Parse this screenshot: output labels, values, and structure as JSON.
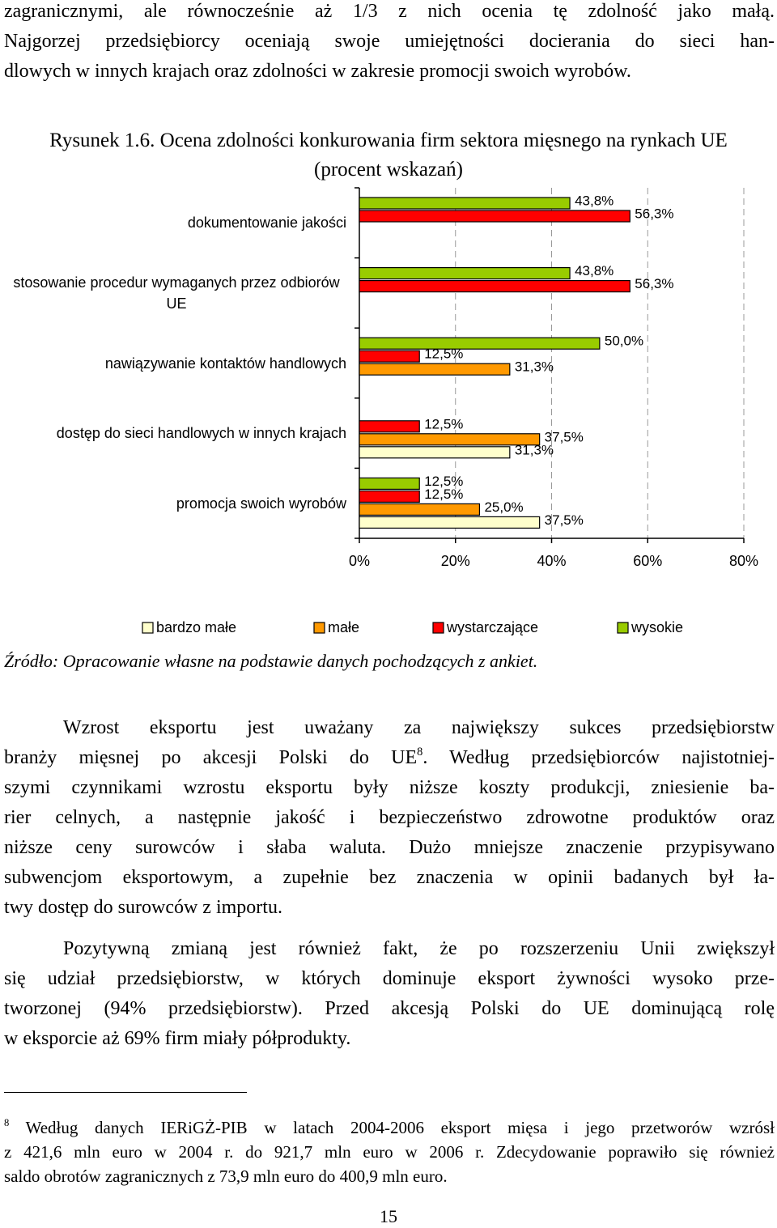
{
  "intro": {
    "lines": [
      "zagranicznymi, ale równocześnie aż 1/3 z nich ocenia tę zdolność jako małą.",
      "Najgorzej przedsiębiorcy oceniają swoje umiejętności docierania do sieci han-",
      "dlowych w innych krajach oraz zdolności w zakresie promocji swoich wyrobów."
    ]
  },
  "chart_data": {
    "type": "bar",
    "orientation": "horizontal",
    "title": "Rysunek 1.6. Ocena zdolności konkurowania firm sektora mięsnego na rynkach UE (procent wskazań)",
    "categories": [
      "dokumentowanie jakości",
      "stosowanie procedur wymaganych przez odbiorów UE",
      "nawiązywanie kontaktów handlowych",
      "dostęp do sieci handlowych w innych krajach",
      "promocja swoich wyrobów"
    ],
    "series": [
      {
        "name": "bardzo małe",
        "color": "#ffffcc",
        "values": [
          null,
          null,
          null,
          31.3,
          37.5
        ],
        "value_labels": [
          null,
          null,
          null,
          "31,3%",
          "37,5%"
        ]
      },
      {
        "name": "małe",
        "color": "#ff9900",
        "values": [
          null,
          null,
          31.3,
          37.5,
          25.0
        ],
        "value_labels": [
          null,
          null,
          "31,3%",
          "37,5%",
          "25,0%"
        ]
      },
      {
        "name": "wystarczające",
        "color": "#ff0000",
        "values": [
          56.3,
          56.3,
          12.5,
          12.5,
          12.5
        ],
        "value_labels": [
          "56,3%",
          "56,3%",
          "12,5%",
          "12,5%",
          "12,5%"
        ]
      },
      {
        "name": "wysokie",
        "color": "#99cc00",
        "values": [
          43.8,
          43.8,
          50.0,
          null,
          12.5
        ],
        "value_labels": [
          "43,8%",
          "43,8%",
          "50,0%",
          null,
          "12,5%"
        ]
      }
    ],
    "xlim": [
      0,
      80
    ],
    "xticks": [
      {
        "value": 0,
        "label": "0%"
      },
      {
        "value": 20,
        "label": "20%"
      },
      {
        "value": 40,
        "label": "40%"
      },
      {
        "value": 60,
        "label": "60%"
      },
      {
        "value": 80,
        "label": "80%"
      }
    ],
    "grid": true,
    "legend": "bottom"
  },
  "source": "Źródło: Opracowanie własne na podstawie danych pochodzących z ankiet.",
  "paragraphs": [
    {
      "lines": [
        "Wzrost eksportu jest uważany za największy sukces przedsiębiorstw",
        {
          "before": "branży mięsnej po akcesji Polski do UE",
          "ref": "8",
          "after": ". Według przedsiębiorców najistotniej-"
        },
        "szymi czynnikami wzrostu eksportu były niższe koszty produkcji, zniesienie ba-",
        "rier celnych, a następnie jakość i bezpieczeństwo zdrowotne produktów oraz",
        "niższe ceny surowców i słaba waluta. Dużo mniejsze znaczenie przypisywano",
        "subwencjom eksportowym, a zupełnie bez znaczenia w opinii badanych był ła-",
        "twy dostęp do surowców z importu."
      ]
    },
    {
      "lines": [
        "Pozytywną zmianą jest również fakt, że po rozszerzeniu Unii zwiększył",
        "się udział przedsiębiorstw, w których dominuje eksport żywności wysoko prze-",
        "tworzonej (94% przedsiębiorstw). Przed akcesją Polski do UE dominującą rolę",
        "w eksporcie aż 69% firm miały półprodukty."
      ]
    }
  ],
  "footnote": {
    "ref": "8",
    "lines": [
      " Według danych IERiGŻ-PIB w latach 2004-2006 eksport mięsa i jego przetworów wzrósł",
      "z 421,6 mln euro w 2004 r. do 921,7 mln euro w 2006 r. Zdecydowanie poprawiło się również",
      "saldo obrotów zagranicznych z 73,9 mln euro do 400,9 mln euro."
    ]
  },
  "page_number": "15"
}
